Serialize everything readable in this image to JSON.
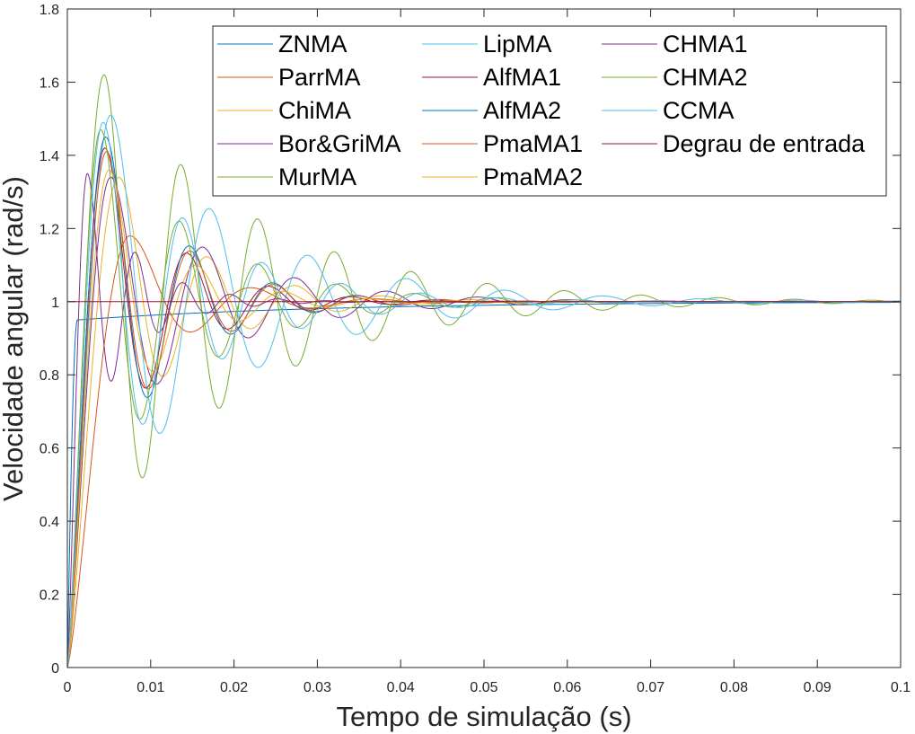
{
  "chart_data": {
    "type": "line",
    "title": "",
    "xlabel": "Tempo de simulação (s)",
    "ylabel": "Velocidade angular (rad/s)",
    "xlim": [
      0,
      0.1
    ],
    "ylim": [
      0,
      1.8
    ],
    "xticks": [
      0,
      0.01,
      0.02,
      0.03,
      0.04,
      0.05,
      0.06,
      0.07,
      0.08,
      0.09,
      0.1
    ],
    "xtick_labels": [
      "0",
      "0.01",
      "0.02",
      "0.03",
      "0.04",
      "0.05",
      "0.06",
      "0.07",
      "0.08",
      "0.09",
      "0.1"
    ],
    "yticks": [
      0,
      0.2,
      0.4,
      0.6,
      0.8,
      1,
      1.2,
      1.4,
      1.6,
      1.8
    ],
    "ytick_labels": [
      "0",
      "0.2",
      "0.4",
      "0.6",
      "0.8",
      "1",
      "1.2",
      "1.4",
      "1.6",
      "1.8"
    ],
    "grid": false,
    "legend_placement": "top-right",
    "legend_columns": 3,
    "series": [
      {
        "name": "ZNMA",
        "color": "#0072BD",
        "kind": "slow",
        "rise_end": 0.0012,
        "plateau": 0.95
      },
      {
        "name": "ParrMA",
        "color": "#D95319",
        "kind": "oscillation",
        "peak_time": 0.0075,
        "peak": 1.18,
        "period": 0.0145,
        "zeta": 0.24
      },
      {
        "name": "ChiMA",
        "color": "#EDB120",
        "kind": "oscillation",
        "peak_time": 0.0062,
        "peak": 1.34,
        "period": 0.0105,
        "zeta": 0.16
      },
      {
        "name": "Bor&GriMA",
        "color": "#7E2F8E",
        "kind": "oscillation",
        "peak_time": 0.0052,
        "peak": 1.34,
        "period": 0.011,
        "zeta": 0.13
      },
      {
        "name": "MurMA",
        "color": "#77AC30",
        "kind": "oscillation",
        "peak_time": 0.0044,
        "peak": 1.62,
        "period": 0.0092,
        "zeta": 0.08
      },
      {
        "name": "LipMA",
        "color": "#4DBEEE",
        "kind": "oscillation",
        "peak_time": 0.0052,
        "peak": 1.51,
        "period": 0.0118,
        "zeta": 0.11
      },
      {
        "name": "AlfMA1",
        "color": "#A2142F",
        "kind": "oscillation",
        "peak_time": 0.0045,
        "peak": 1.42,
        "period": 0.0098,
        "zeta": 0.18
      },
      {
        "name": "AlfMA2",
        "color": "#0072BD",
        "kind": "oscillation",
        "peak_time": 0.0046,
        "peak": 1.45,
        "period": 0.01,
        "zeta": 0.17
      },
      {
        "name": "PmaMA1",
        "color": "#D95319",
        "kind": "oscillation",
        "peak_time": 0.0047,
        "peak": 1.41,
        "period": 0.01,
        "zeta": 0.17
      },
      {
        "name": "PmaMA2",
        "color": "#EDB120",
        "kind": "oscillation",
        "peak_time": 0.005,
        "peak": 1.36,
        "period": 0.0104,
        "zeta": 0.2
      },
      {
        "name": "CHMA1",
        "color": "#7E2F8E",
        "kind": "oscillation",
        "peak_time": 0.0024,
        "peak": 1.35,
        "period": 0.0057,
        "zeta": 0.15
      },
      {
        "name": "CHMA2",
        "color": "#77AC30",
        "kind": "oscillation",
        "peak_time": 0.004,
        "peak": 1.47,
        "period": 0.0094,
        "zeta": 0.12
      },
      {
        "name": "CCMA",
        "color": "#4DBEEE",
        "kind": "oscillation",
        "peak_time": 0.0043,
        "peak": 1.49,
        "period": 0.0095,
        "zeta": 0.12
      },
      {
        "name": "Degrau de entrada",
        "color": "#A2142F",
        "kind": "step",
        "value": 1
      }
    ]
  }
}
